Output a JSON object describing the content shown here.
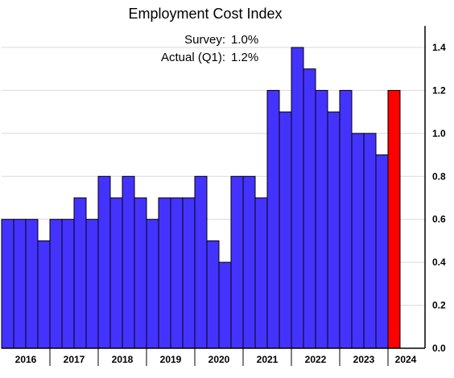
{
  "chart_data": {
    "type": "bar",
    "title": "Employment Cost Index",
    "annotations": [
      {
        "label": "Survey:",
        "value": "1.0%"
      },
      {
        "label": "Actual (Q1):",
        "value": "1.2%"
      }
    ],
    "x_tick_labels": [
      "2016",
      "2017",
      "2018",
      "2019",
      "2020",
      "2021",
      "2022",
      "2023",
      "2024"
    ],
    "categories": [
      "2016 Q1",
      "2016 Q2",
      "2016 Q3",
      "2016 Q4",
      "2017 Q1",
      "2017 Q2",
      "2017 Q3",
      "2017 Q4",
      "2018 Q1",
      "2018 Q2",
      "2018 Q3",
      "2018 Q4",
      "2019 Q1",
      "2019 Q2",
      "2019 Q3",
      "2019 Q4",
      "2020 Q1",
      "2020 Q2",
      "2020 Q3",
      "2020 Q4",
      "2021 Q1",
      "2021 Q2",
      "2021 Q3",
      "2021 Q4",
      "2022 Q1",
      "2022 Q2",
      "2022 Q3",
      "2022 Q4",
      "2023 Q1",
      "2023 Q2",
      "2023 Q3",
      "2023 Q4",
      "2024 Q1"
    ],
    "values": [
      0.6,
      0.6,
      0.6,
      0.5,
      0.6,
      0.6,
      0.7,
      0.6,
      0.8,
      0.7,
      0.8,
      0.7,
      0.6,
      0.7,
      0.7,
      0.7,
      0.8,
      0.5,
      0.4,
      0.8,
      0.8,
      0.7,
      1.2,
      1.1,
      1.4,
      1.3,
      1.2,
      1.1,
      1.2,
      1.0,
      1.0,
      0.9,
      1.2
    ],
    "y_ticks": [
      "0.0",
      "0.2",
      "0.4",
      "0.6",
      "0.8",
      "1.0",
      "1.2",
      "1.4"
    ],
    "ylim": [
      0,
      1.5
    ],
    "y_axis_side": "right",
    "grid": true,
    "colors": {
      "bar": "#4433ff",
      "highlight": "#ff0000",
      "grid": "#d9d9d9",
      "axis": "#000000"
    },
    "highlight_last": true
  }
}
